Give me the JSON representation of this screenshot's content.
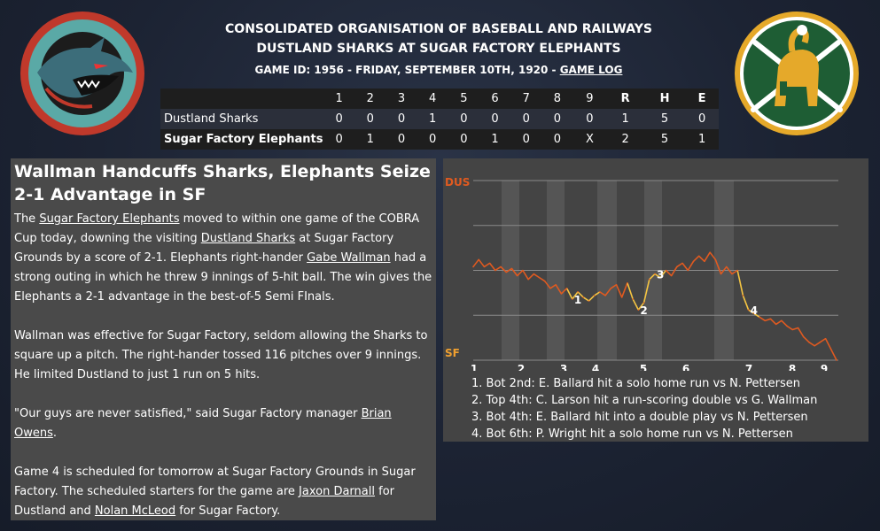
{
  "header": {
    "league": "CONSOLIDATED ORGANISATION OF BASEBALL AND RAILWAYS",
    "matchup": "DUSTLAND SHARKS AT SUGAR FACTORY ELEPHANTS",
    "game_info": "GAME ID: 1956 - FRIDAY, SEPTEMBER 10TH, 1920 - ",
    "game_log_link": "GAME LOG"
  },
  "logos": {
    "away": "shark-logo-icon",
    "home": "elephant-logo-icon"
  },
  "linescore": {
    "headers": [
      "1",
      "2",
      "3",
      "4",
      "5",
      "6",
      "7",
      "8",
      "9",
      "R",
      "H",
      "E"
    ],
    "rows": [
      {
        "team": "Dustland Sharks",
        "cells": [
          "0",
          "0",
          "0",
          "1",
          "0",
          "0",
          "0",
          "0",
          "0",
          "1",
          "5",
          "0"
        ]
      },
      {
        "team": "Sugar Factory Elephants",
        "cells": [
          "0",
          "1",
          "0",
          "0",
          "0",
          "1",
          "0",
          "0",
          "X",
          "2",
          "5",
          "1"
        ]
      }
    ]
  },
  "article": {
    "headline": "Wallman Handcuffs Sharks, Elephants Seize 2-1 Advantage in SF",
    "p1": [
      {
        "t": "The "
      },
      {
        "t": "Sugar Factory Elephants",
        "link": true
      },
      {
        "t": " moved to within one game of the COBRA Cup today, downing the visiting "
      },
      {
        "t": "Dustland Sharks",
        "link": true
      },
      {
        "t": " at Sugar Factory Grounds by a score of 2-1. Elephants right-hander "
      },
      {
        "t": "Gabe Wallman",
        "link": true
      },
      {
        "t": " had a strong outing in which he threw 9 innings of 5-hit ball. The win gives the Elephants a 2-1 advantage in the best-of-5 Semi FInals."
      }
    ],
    "p2": [
      {
        "t": "Wallman was effective for Sugar Factory, seldom allowing the Sharks to square up a pitch. The right-hander tossed 116 pitches over 9 innings. He limited Dustland to just 1 run on 5 hits."
      }
    ],
    "p3": [
      {
        "t": "\"Our guys are never satisfied,\" said Sugar Factory manager "
      },
      {
        "t": "Brian Owens",
        "link": true
      },
      {
        "t": "."
      }
    ],
    "p4": [
      {
        "t": "Game 4 is scheduled for tomorrow at Sugar Factory Grounds in Sugar Factory. The scheduled starters for the game are "
      },
      {
        "t": "Jaxon Darnall",
        "link": true
      },
      {
        "t": " for Dustland and "
      },
      {
        "t": "Nolan McLeod",
        "link": true
      },
      {
        "t": " for Sugar Factory."
      }
    ]
  },
  "chart_data": {
    "type": "line",
    "top_label": "DUS",
    "bottom_label": "SF",
    "colors": {
      "top": "#e05a20",
      "bottom": "#f0a030",
      "line": "#e05a20",
      "highlight": "#f5c542"
    },
    "innings": [
      "1",
      "2",
      "3",
      "4",
      "5",
      "6",
      "7",
      "8",
      "9"
    ],
    "ylim": [
      0,
      1
    ],
    "series": [
      {
        "values": [
          0.52,
          0.56,
          0.52,
          0.54,
          0.5,
          0.52,
          0.49,
          0.51,
          0.47,
          0.5,
          0.45,
          0.48,
          0.46,
          0.44,
          0.4,
          0.42,
          0.37,
          0.4,
          0.34,
          0.38,
          0.35,
          0.33,
          0.36,
          0.38,
          0.36,
          0.4,
          0.42,
          0.35,
          0.43,
          0.34,
          0.28,
          0.32,
          0.45,
          0.48,
          0.46,
          0.5,
          0.47,
          0.52,
          0.54,
          0.5,
          0.55,
          0.58,
          0.55,
          0.6,
          0.56,
          0.48,
          0.52,
          0.48,
          0.5,
          0.36,
          0.28,
          0.26,
          0.24,
          0.22,
          0.23,
          0.2,
          0.22,
          0.19,
          0.17,
          0.18,
          0.13,
          0.1,
          0.08,
          0.1,
          0.12,
          0.06,
          0.0
        ]
      }
    ],
    "markers": [
      {
        "label": "1",
        "value_index": 18
      },
      {
        "label": "2",
        "value_index": 30
      },
      {
        "label": "3",
        "value_index": 33
      },
      {
        "label": "4",
        "value_index": 50
      }
    ],
    "notes": [
      "1. Bot 2nd: E. Ballard hit a solo home run vs N. Pettersen",
      "2. Top 4th: C. Larson hit a run-scoring double vs G. Wallman",
      "3. Bot 4th: E. Ballard hit into a double play vs N. Pettersen",
      "4. Bot 6th: P. Wright hit a solo home run vs N. Pettersen"
    ]
  }
}
